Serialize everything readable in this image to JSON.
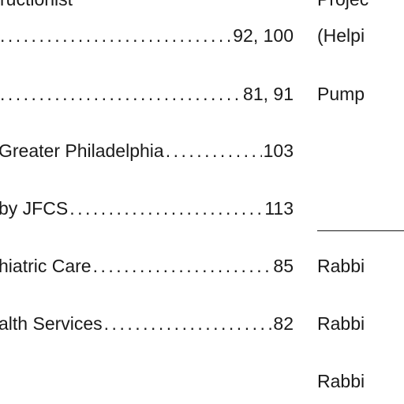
{
  "left_column": {
    "top_fragment": "ructionist",
    "entries": [
      {
        "title": "",
        "pages": "92, 100"
      },
      {
        "title": "",
        "pages": "81, 91"
      },
      {
        "title": "Greater Philadelphia",
        "pages": "103"
      },
      {
        "title": "by JFCS",
        "pages": "113"
      },
      {
        "title": "hiatric Care",
        "pages": "85"
      },
      {
        "title": "alth Services",
        "pages": "82"
      }
    ]
  },
  "right_column": {
    "line1": "Projec",
    "line2": "(Helpi",
    "line3": "Pump",
    "rabbi1": "Rabbi",
    "rabbi2": "Rabbi",
    "rabbi3": "Rabbi"
  }
}
